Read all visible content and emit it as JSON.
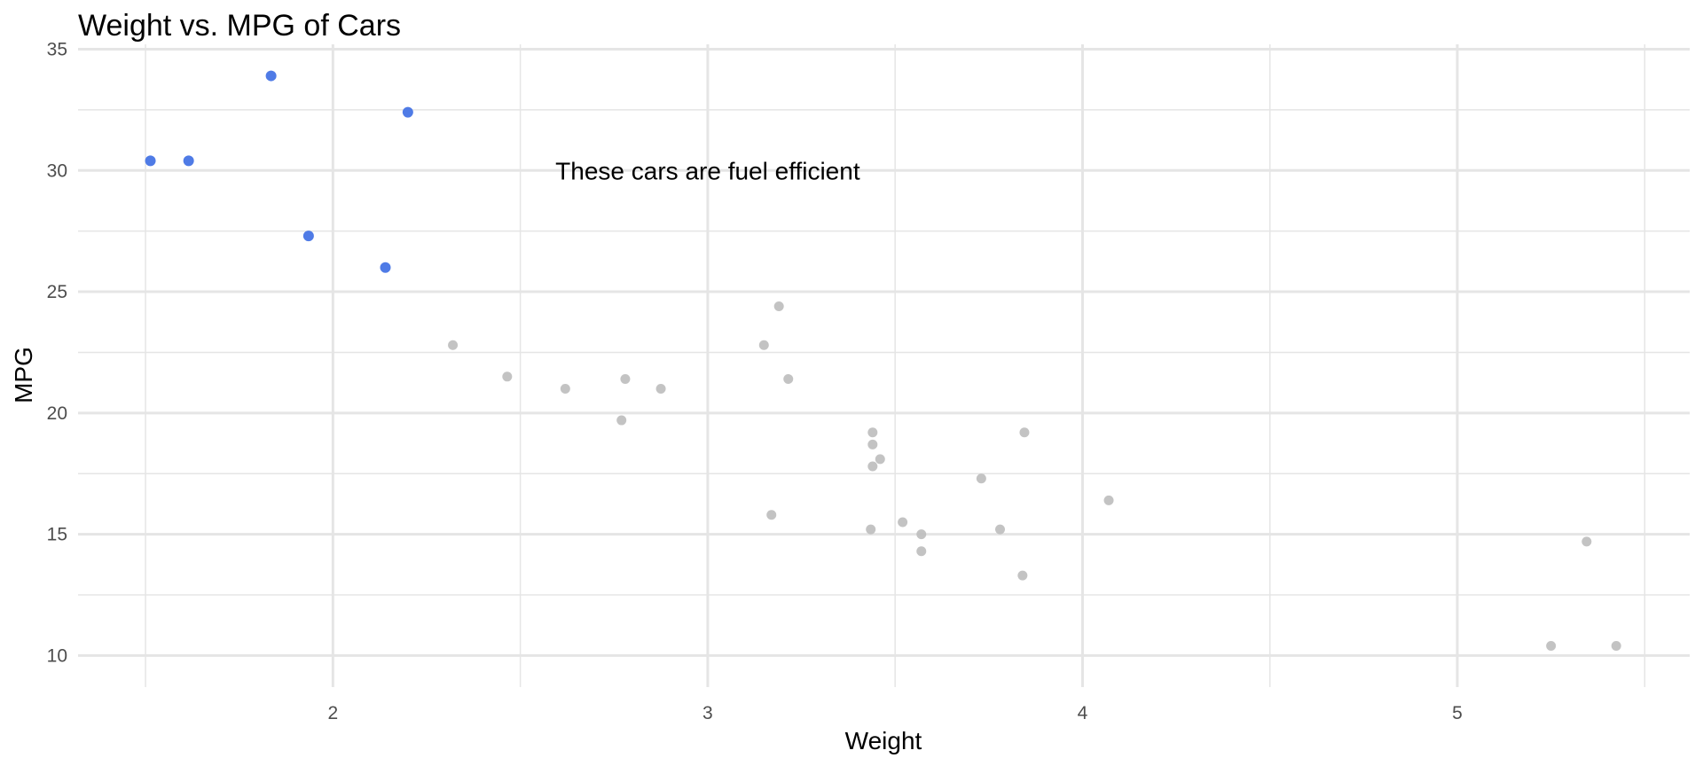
{
  "chart_data": {
    "type": "scatter",
    "title": "Weight vs. MPG of Cars",
    "xlabel": "Weight",
    "ylabel": "MPG",
    "xlim": [
      1.32,
      5.62
    ],
    "ylim": [
      8.7,
      35.2
    ],
    "x_ticks": [
      2,
      3,
      4,
      5
    ],
    "x_minor": [
      1.5,
      2.5,
      3.5,
      4.5,
      5.5
    ],
    "y_ticks": [
      10,
      15,
      20,
      25,
      30,
      35
    ],
    "y_minor": [
      12.5,
      17.5,
      22.5,
      27.5,
      32.5
    ],
    "grid": true,
    "colors": {
      "highlight": "#4f7be6",
      "other": "#bdbdbd",
      "grid": "#e5e5e5"
    },
    "annotation": {
      "text": "These cars are fuel efficient",
      "x": 3.0,
      "y": 30
    },
    "series": [
      {
        "highlight": true,
        "x": [
          1.513,
          1.615,
          1.835,
          1.935,
          2.14,
          2.2
        ],
        "y": [
          30.4,
          30.4,
          33.9,
          27.3,
          26.0,
          32.4
        ]
      },
      {
        "highlight": false,
        "x": [
          2.32,
          2.465,
          2.62,
          2.77,
          2.78,
          2.875,
          3.15,
          3.17,
          3.19,
          3.215,
          3.435,
          3.44,
          3.44,
          3.44,
          3.46,
          3.52,
          3.57,
          3.57,
          3.73,
          3.78,
          3.84,
          3.845,
          4.07,
          5.25,
          5.345,
          5.424
        ],
        "y": [
          22.8,
          21.5,
          21.0,
          19.7,
          21.4,
          21.0,
          22.8,
          15.8,
          24.4,
          21.4,
          15.2,
          19.2,
          18.7,
          17.8,
          18.1,
          15.5,
          15.0,
          14.3,
          17.3,
          15.2,
          13.3,
          19.2,
          16.4,
          10.4,
          14.7,
          10.4
        ]
      }
    ]
  }
}
